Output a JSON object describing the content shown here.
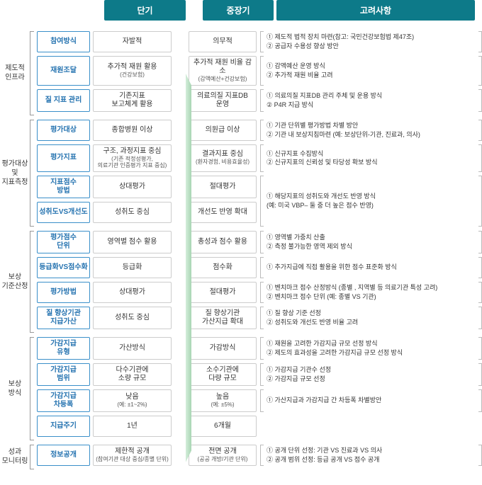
{
  "headers": {
    "short": "단기",
    "mid": "중장기",
    "cons": "고려사항"
  },
  "colors": {
    "header_bg": "#0d7a89",
    "sub_border": "#3a8fc9",
    "sub_text": "#2573b0",
    "val_border": "#cccccc"
  },
  "groups": [
    {
      "label": "제도적\n인프라",
      "rows": [
        {
          "sub": "참여방식",
          "short": "자발적",
          "short_small": "",
          "mid": "의무적",
          "mid_small": "",
          "cons": [
            "① 제도적 법적 장치 마련(참고: 국민건강보험법 제47조)",
            "② 공급자 수용성 향상 방안"
          ]
        },
        {
          "sub": "재원조달",
          "short": "추가적 재원 활용",
          "short_small": "(건강보험)",
          "mid": "추가적 재원 비율 감소",
          "mid_small": "(감액예산+건강보험)",
          "cons": [
            "① 감액예산 운영 방식",
            "② 추가적 재원 비율 고려"
          ]
        },
        {
          "sub": "질 지표 관리",
          "short": "기존지표\n보고체계 활용",
          "short_small": "",
          "mid": "의료의질 지표DB\n운영",
          "mid_small": "",
          "cons": [
            "① 의료의질 지표DB 관리 주체 및 운용 방식",
            "② P4R 지급 방식"
          ]
        }
      ]
    },
    {
      "label": "평가대상 및\n지표측정",
      "rows": [
        {
          "sub": "평가대상",
          "short": "종합병원 이상",
          "short_small": "",
          "mid": "의원급 이상",
          "mid_small": "",
          "cons": [
            "① 기관 단위별 평가방법 차별 방안",
            "② 기관 내 보상지침마련 (예: 보상단위-기관, 진료과, 의사)"
          ]
        },
        {
          "sub": "평가지표",
          "short": "구조, 과정지표 중심",
          "short_small": "(기존 적정성평가,\n의료기관 인증평가 지표 중심)",
          "mid": "결과지표 중심",
          "mid_small": "(환자경험, 비용효율성)",
          "cons": [
            "① 신규지표 수집방식",
            "② 신규지표의 신뢰성 및 타당성 확보 방식"
          ]
        },
        {
          "sub": "지표점수\n방법",
          "short": "상대평가",
          "short_small": "",
          "mid": "절대평가",
          "mid_small": "",
          "cons": [],
          "mergeDown": true
        },
        {
          "sub": "성취도VS개선도",
          "short": "성취도 중심",
          "short_small": "",
          "mid": "개선도 반영 확대",
          "mid_small": "",
          "cons": [
            "① 해당지표의 성취도와 개선도 반영 방식",
            "   (예: 미국 VBP– 둘 중 더 높은 점수 반영)"
          ],
          "mergeUp": true
        }
      ]
    },
    {
      "label": "보상\n기준산정",
      "rows": [
        {
          "sub": "평가점수\n단위",
          "short": "영역별 점수 활용",
          "short_small": "",
          "mid": "총성과 점수 활용",
          "mid_small": "",
          "cons": [
            "① 영역별 가중치 산출",
            "② 측정 불가능한 영역 제외 방식"
          ]
        },
        {
          "sub": "등급화VS점수화",
          "short": "등급화",
          "short_small": "",
          "mid": "점수화",
          "mid_small": "",
          "cons": [
            "① 추가지급에 직접 활용을 위한 점수 표준화 방식"
          ]
        },
        {
          "sub": "평가방법",
          "short": "상대평가",
          "short_small": "",
          "mid": "절대평가",
          "mid_small": "",
          "cons": [
            "① 벤치마크 점수 산정방식 (종별 , 지역별 등 의료기관 특성 고려)",
            "② 벤치마크 점수 단위 (예: 종별 VS 기관)"
          ]
        },
        {
          "sub": "질 향상기관\n지급가산",
          "short": "성취도 중심",
          "short_small": "",
          "mid": "질 향상기관\n가산지급 확대",
          "mid_small": "",
          "cons": [
            "① 질 향상 기준 선정",
            "② 성취도와 개선도 반영 비율 고려"
          ]
        }
      ]
    },
    {
      "label": "보상\n방식",
      "rows": [
        {
          "sub": "가감지급\n유형",
          "short": "가산방식",
          "short_small": "",
          "mid": "가감방식",
          "mid_small": "",
          "cons": [
            "① 재원을 고려한 가감지급 규모 선정 방식",
            "② 제도의 효과성을 고려한 가감지급 규모 선정 방식"
          ]
        },
        {
          "sub": "가감지급\n범위",
          "short": "다수기관에\n소량 규모",
          "short_small": "",
          "mid": "소수기관에\n다량 규모",
          "mid_small": "",
          "cons": [
            "① 가감지급 기관수 선정",
            "② 가감지급 규모 선정"
          ]
        },
        {
          "sub": "가감지급\n차등폭",
          "short": "낮음",
          "short_small": "(예: ±1~2%)",
          "mid": "높음",
          "mid_small": "(예: ±5%)",
          "cons": [
            "① 가산지급과 가감지급 간 차등폭 차별방안"
          ]
        },
        {
          "sub": "지급주기",
          "short": "1년",
          "short_small": "",
          "mid": "6개월",
          "mid_small": "",
          "cons": []
        }
      ]
    },
    {
      "label": "성과\n모니터링",
      "rows": [
        {
          "sub": "정보공개",
          "short": "제한적 공개",
          "short_small": "(참여기관 대상 중심/종별 단위)",
          "mid": "전면 공개",
          "mid_small": "(공공 개방/기관 단위)",
          "cons": [
            "① 공개 단위 선정: 기관 VS 진료과 VS 의사",
            "② 공개 범위 선정: 등급 공개 VS 점수 공개"
          ]
        }
      ]
    }
  ]
}
